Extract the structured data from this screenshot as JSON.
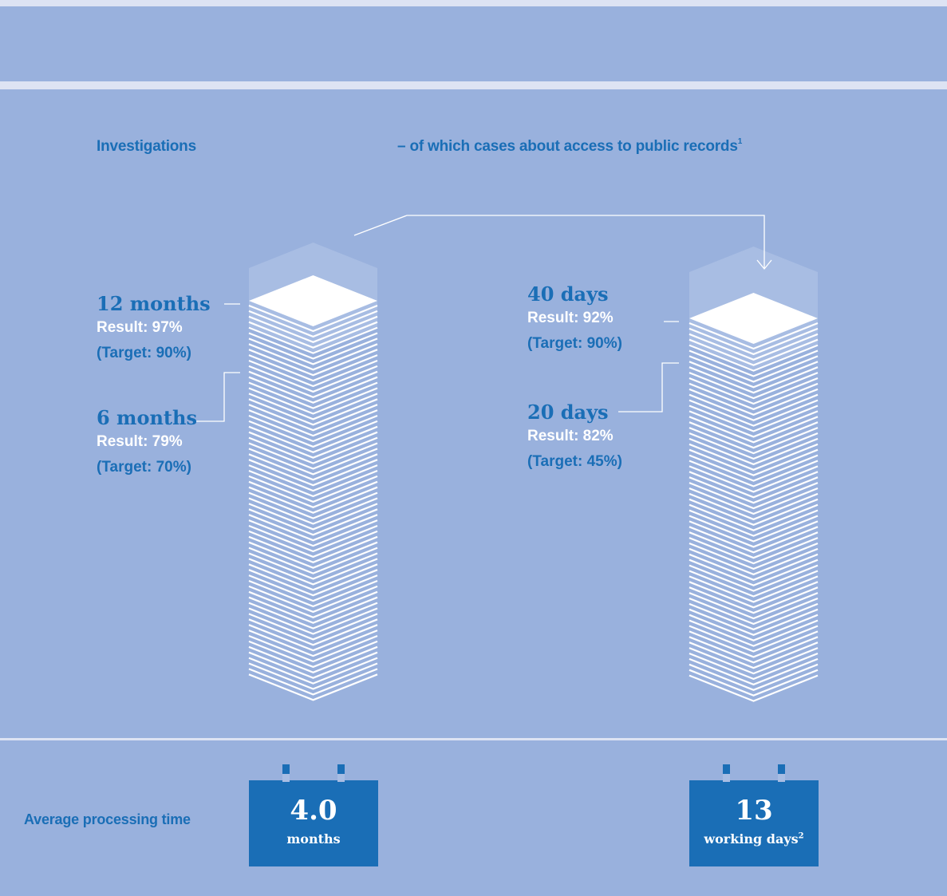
{
  "headings": {
    "left": "Investigations",
    "right": "– of which cases about access to public records",
    "right_footnote": "1"
  },
  "left_stack": {
    "upper": {
      "period": "12 months",
      "result": "Result: 97%",
      "target": "(Target: 90%)",
      "result_pct": 97,
      "target_pct": 90
    },
    "lower": {
      "period": "6 months",
      "result": "Result: 79%",
      "target": "(Target: 70%)",
      "result_pct": 79,
      "target_pct": 70
    }
  },
  "right_stack": {
    "upper": {
      "period": "40 days",
      "result": "Result: 92%",
      "target": "(Target: 90%)",
      "result_pct": 92,
      "target_pct": 90
    },
    "lower": {
      "period": "20 days",
      "result": "Result: 82%",
      "target": "(Target: 45%)",
      "result_pct": 82,
      "target_pct": 45
    }
  },
  "processing": {
    "label": "Average processing time",
    "left": {
      "value": "4.0",
      "unit": "months"
    },
    "right": {
      "value": "13",
      "unit": "working days",
      "footnote": "2"
    }
  },
  "colors": {
    "panel": "#99b1dd",
    "accent": "#1a6eb6",
    "page_lines": "#ffffff",
    "ghost_top": "#a8bde3",
    "background": "#dde3f3"
  }
}
